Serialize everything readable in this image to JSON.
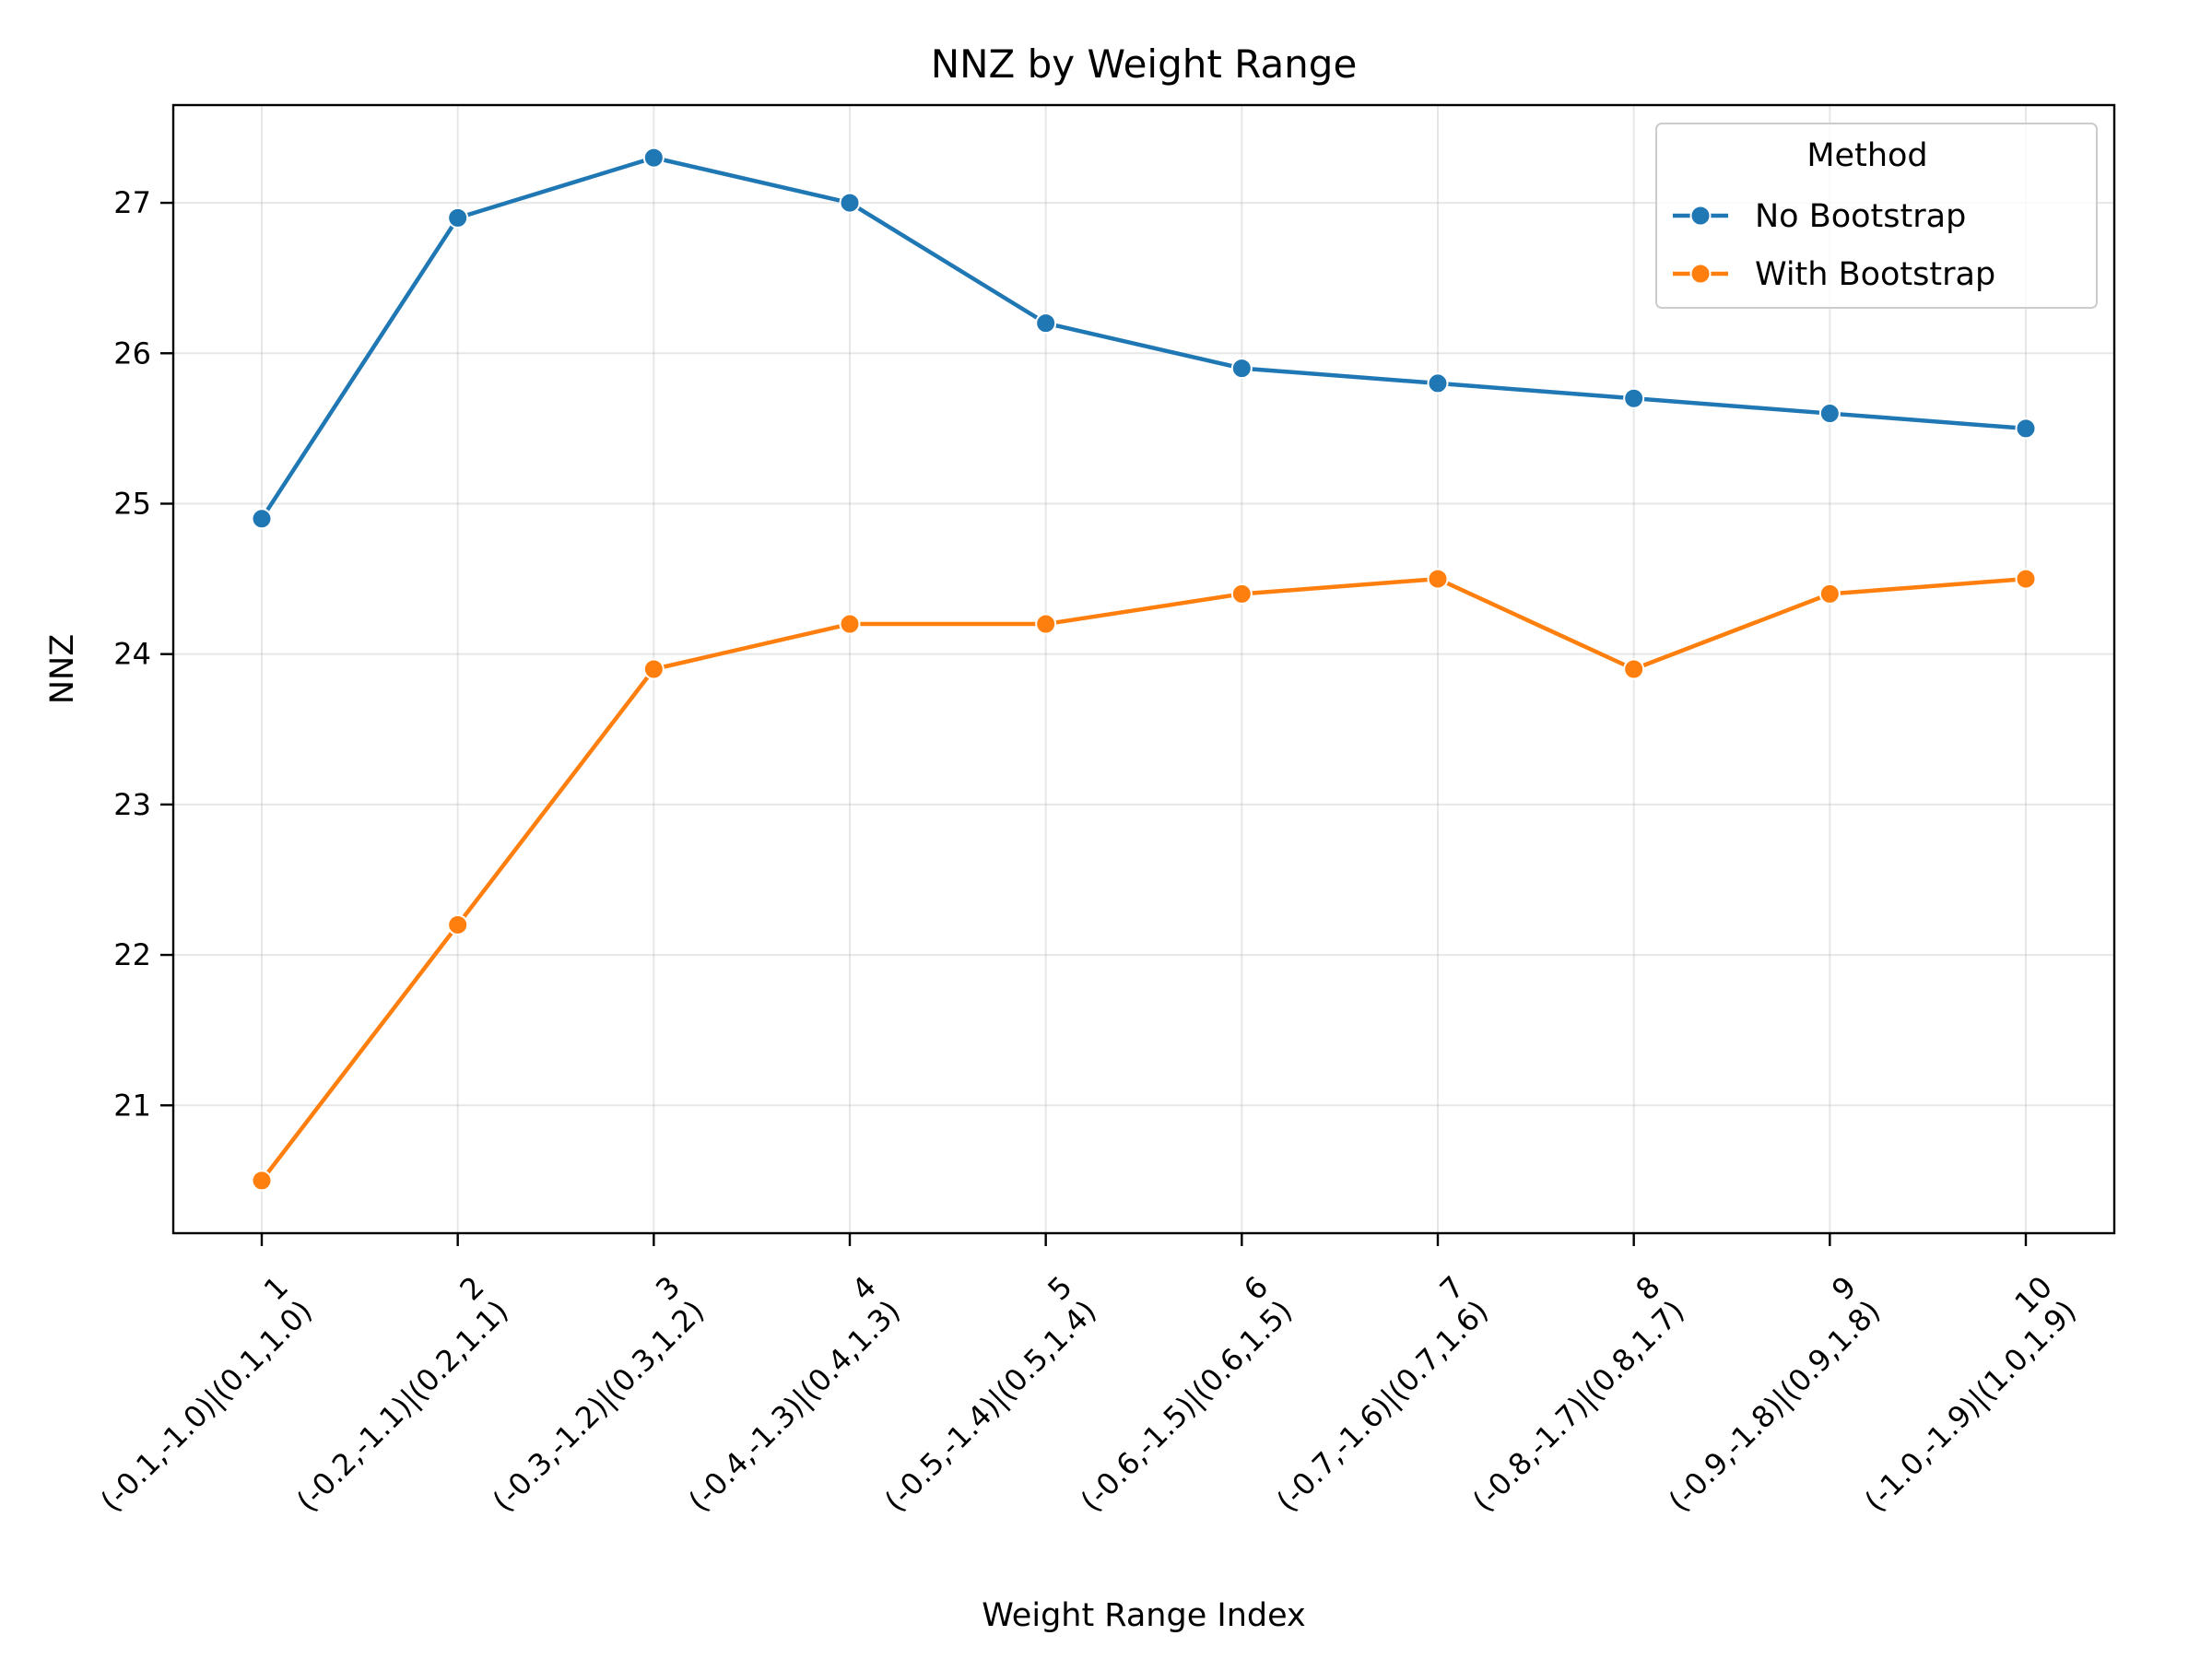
{
  "chart_data": {
    "type": "line",
    "title": "NNZ by Weight Range",
    "xlabel": "Weight Range Index",
    "ylabel": "NNZ",
    "categories": [
      {
        "index": "1",
        "range": "(-0.1,-1.0)|(0.1,1.0)"
      },
      {
        "index": "2",
        "range": "(-0.2,-1.1)|(0.2,1.1)"
      },
      {
        "index": "3",
        "range": "(-0.3,-1.2)|(0.3,1.2)"
      },
      {
        "index": "4",
        "range": "(-0.4,-1.3)|(0.4,1.3)"
      },
      {
        "index": "5",
        "range": "(-0.5,-1.4)|(0.5,1.4)"
      },
      {
        "index": "6",
        "range": "(-0.6,-1.5)|(0.6,1.5)"
      },
      {
        "index": "7",
        "range": "(-0.7,-1.6)|(0.7,1.6)"
      },
      {
        "index": "8",
        "range": "(-0.8,-1.7)|(0.8,1.7)"
      },
      {
        "index": "9",
        "range": "(-0.9,-1.8)|(0.9,1.8)"
      },
      {
        "index": "10",
        "range": "(-1.0,-1.9)|(1.0,1.9)"
      }
    ],
    "ylim": [
      20.15,
      27.65
    ],
    "yticks": [
      21,
      22,
      23,
      24,
      25,
      26,
      27
    ],
    "grid": true,
    "legend": {
      "title": "Method",
      "position": "top-right"
    },
    "series": [
      {
        "name": "No Bootstrap",
        "color": "#1f77b4",
        "values": [
          24.9,
          26.9,
          27.3,
          27.0,
          26.2,
          25.9,
          25.8,
          25.7,
          25.6,
          25.5
        ]
      },
      {
        "name": "With Bootstrap",
        "color": "#ff7f0e",
        "values": [
          20.5,
          22.2,
          23.9,
          24.2,
          24.2,
          24.4,
          24.5,
          23.9,
          24.4,
          24.5
        ]
      }
    ]
  }
}
